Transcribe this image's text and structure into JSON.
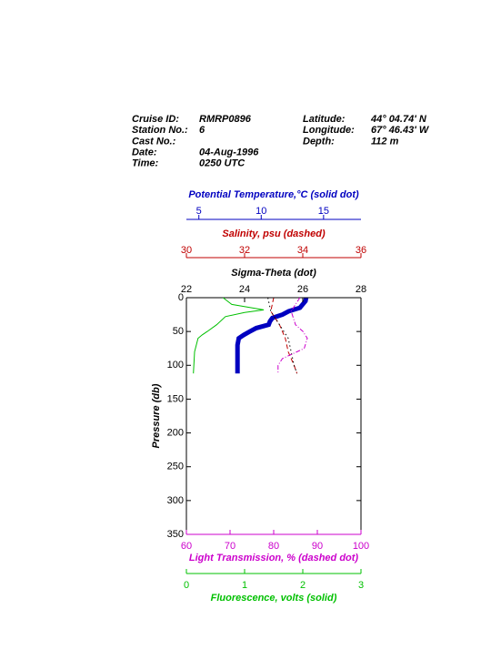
{
  "header": {
    "left": [
      [
        "Cruise ID:",
        "RMRP0896"
      ],
      [
        "Station No.:",
        "6"
      ],
      [
        "Cast No.:"
      ],
      [
        "Date:",
        "04-Aug-1996"
      ],
      [
        "Time:",
        "0250 UTC"
      ]
    ],
    "right": [
      [
        "Latitude:",
        "44° 04.74' N"
      ],
      [
        "Longitude:",
        "67° 46.43' W"
      ],
      [
        "Depth:",
        "112 m"
      ]
    ]
  },
  "chart_data": {
    "type": "profile",
    "y_label": "Pressure (db)",
    "ylim": [
      0,
      350
    ],
    "y_inverted": true,
    "yticks": [
      0,
      50,
      100,
      150,
      200,
      250,
      300,
      350
    ],
    "series": [
      {
        "name": "Potential Temperature,°C (solid dot)",
        "color": "#0000c0",
        "style": "thick",
        "xlim": [
          4,
          18
        ],
        "xticks": [
          5,
          10,
          15
        ],
        "values": [
          13.6,
          13.55,
          13.1,
          12.2,
          11.7,
          10.9,
          10.7,
          10.6,
          9.6,
          9.1,
          8.6,
          8.2,
          8.1,
          8.1,
          8.1,
          8.1
        ],
        "pressure": [
          0,
          5,
          15,
          20,
          25,
          30,
          35,
          40,
          45,
          50,
          55,
          60,
          70,
          80,
          100,
          112
        ]
      },
      {
        "name": "Salinity, psu  (dashed)",
        "color": "#c00000",
        "style": "dashed",
        "xlim": [
          30,
          36
        ],
        "xticks": [
          30,
          32,
          34,
          36
        ],
        "values": [
          33.0,
          32.9,
          33.2,
          33.4,
          33.5,
          33.7,
          33.8
        ],
        "pressure": [
          0,
          20,
          40,
          60,
          80,
          100,
          112
        ]
      },
      {
        "name": "Sigma-Theta (dot)",
        "color": "#000000",
        "style": "dot",
        "xlim": [
          22,
          28
        ],
        "xticks": [
          22,
          24,
          26,
          28
        ],
        "values": [
          24.8,
          24.9,
          25.2,
          25.5,
          25.6,
          25.7,
          25.8
        ],
        "pressure": [
          0,
          20,
          40,
          60,
          80,
          100,
          112
        ]
      },
      {
        "name": "Light Transmission, % (dashed dot)",
        "color": "#cc00cc",
        "style": "dashdot",
        "xlim": [
          60,
          100
        ],
        "xticks": [
          60,
          70,
          80,
          90,
          100
        ],
        "values": [
          86,
          84,
          85,
          86.7,
          87.7,
          87,
          82,
          81,
          81
        ],
        "pressure": [
          0,
          20,
          40,
          50,
          60,
          75,
          90,
          100,
          112
        ]
      },
      {
        "name": "Fluorescence, volts (solid)",
        "color": "#00c000",
        "style": "solid",
        "xlim": [
          0,
          3
        ],
        "xticks": [
          0,
          1,
          2,
          3
        ],
        "values": [
          0.63,
          0.78,
          1.33,
          1.0,
          0.67,
          0.52,
          0.36,
          0.27,
          0.2,
          0.14,
          0.12
        ],
        "pressure": [
          0,
          10,
          18,
          22,
          28,
          40,
          50,
          55,
          60,
          80,
          112
        ]
      }
    ]
  }
}
